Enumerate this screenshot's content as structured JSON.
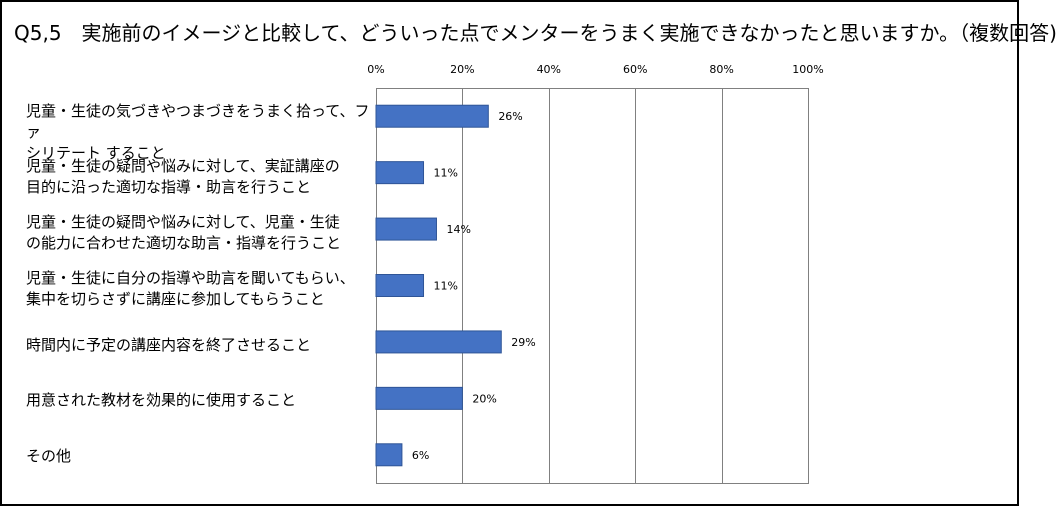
{
  "title": "Q5,5　実施前のイメージと比較して、どういった点でメンターをうまく実施できなかったと思いますか。（複数回答)",
  "colors": {
    "bar": "#4472C4",
    "bar_border": "#2F5597",
    "grid": "#808080"
  },
  "chart_data": {
    "type": "bar",
    "orientation": "horizontal",
    "title": "Q5,5　実施前のイメージと比較して、どういった点でメンターをうまく実施できなかったと思いますか。（複数回答)",
    "xlim": [
      0,
      100
    ],
    "xticks": [
      0,
      20,
      40,
      60,
      80,
      100
    ],
    "xtick_labels": [
      "0%",
      "20%",
      "40%",
      "60%",
      "80%",
      "100%"
    ],
    "x_axis_position": "top",
    "grid": true,
    "categories": [
      "児童・生徒の気づきやつまづきをうまく拾って、ファ\nシリテート すること",
      "児童・生徒の疑問や悩みに対して、実証講座の\n目的に沿った適切な指導・助言を行うこと",
      "児童・生徒の疑問や悩みに対して、児童・生徒\nの能力に合わせた適切な助言・指導を行うこと",
      "児童・生徒に自分の指導や助言を聞いてもらい、\n集中を切らさずに講座に参加してもらうこと",
      "時間内に予定の講座内容を終了させること",
      "用意された教材を効果的に使用すること",
      "その他"
    ],
    "values": [
      26,
      11,
      14,
      11,
      29,
      20,
      6
    ],
    "data_labels": [
      "26%",
      "11%",
      "14%",
      "11%",
      "29%",
      "20%",
      "6%"
    ]
  }
}
